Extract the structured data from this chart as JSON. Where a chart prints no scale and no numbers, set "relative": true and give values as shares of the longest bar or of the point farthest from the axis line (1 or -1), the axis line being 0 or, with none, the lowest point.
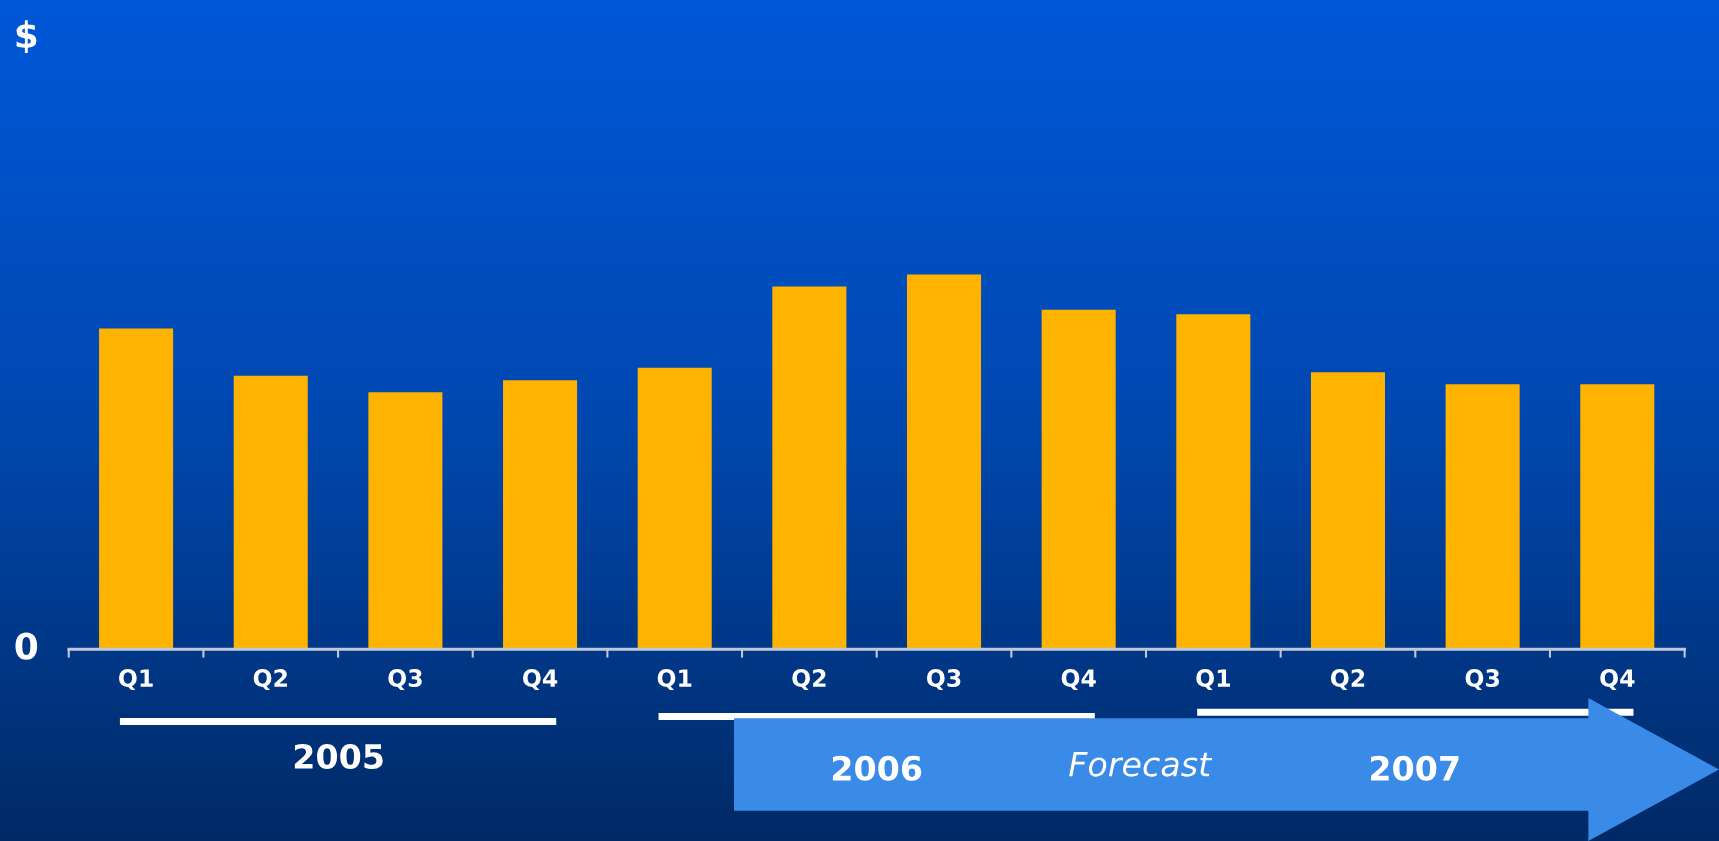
{
  "chart_data": {
    "type": "bar",
    "relative": true,
    "categories": [
      "Q1",
      "Q2",
      "Q3",
      "Q4",
      "Q1",
      "Q2",
      "Q3",
      "Q4",
      "Q1",
      "Q2",
      "Q3",
      "Q4"
    ],
    "values": [
      0.856,
      0.73,
      0.686,
      0.718,
      0.751,
      0.968,
      1,
      0.906,
      0.894,
      0.739,
      0.707,
      0.707
    ],
    "color": "#fdb300",
    "annotations": [
      "$",
      "0",
      "2005",
      "2006",
      "Forecast",
      "2007"
    ],
    "grid": false,
    "legend": false
  }
}
